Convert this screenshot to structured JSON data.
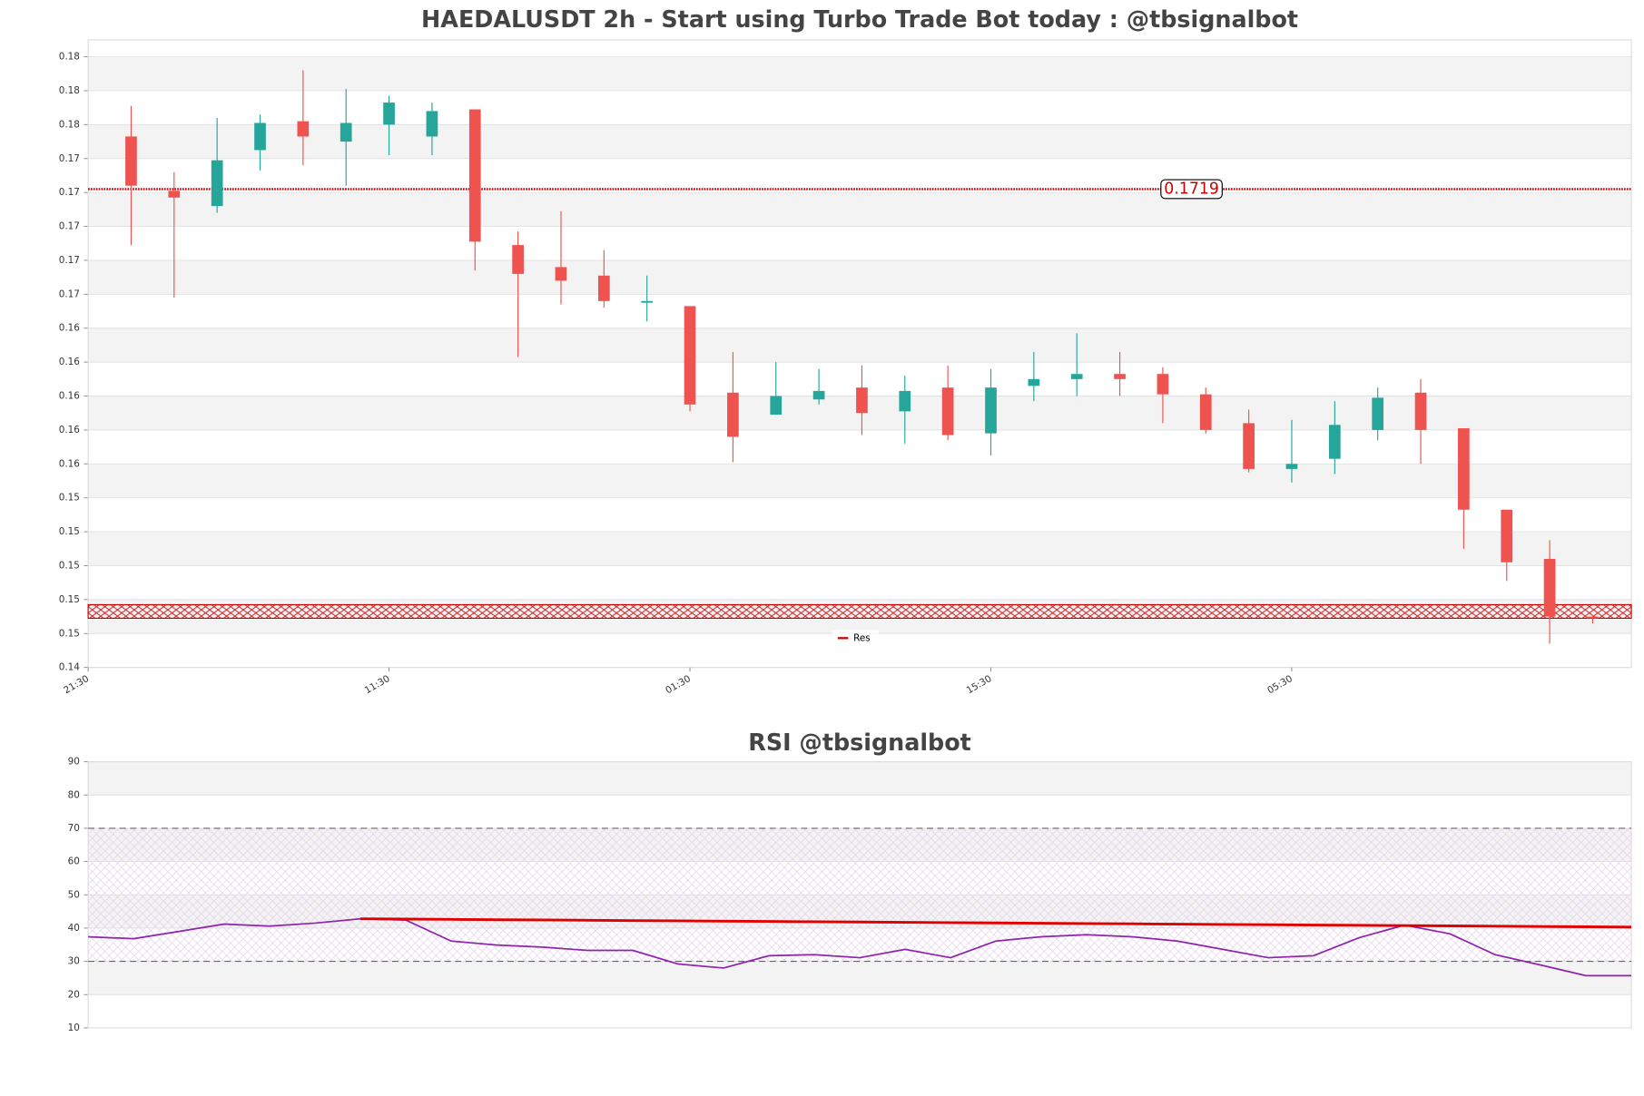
{
  "chart_data": [
    {
      "type": "candlestick",
      "title": "HAEDALUSDT 2h - Start using Turbo Trade Bot today : @tbsignalbot",
      "categories": [
        null,
        null,
        null,
        null,
        null,
        null,
        null,
        null,
        null,
        null,
        null,
        null,
        null,
        null,
        null,
        null,
        null,
        null,
        null,
        null,
        null,
        null,
        null,
        null,
        null,
        null,
        null,
        null,
        null,
        null,
        null,
        null,
        null,
        null,
        null
      ],
      "open": [
        0.175,
        0.1718,
        0.1709,
        0.1742,
        0.1759,
        0.1747,
        0.1757,
        0.175,
        0.1766,
        0.1686,
        0.1673,
        0.1668,
        0.1652,
        0.165,
        0.1599,
        0.1586,
        0.1595,
        0.1602,
        0.1588,
        0.1602,
        0.1575,
        0.1603,
        0.1607,
        0.161,
        0.161,
        0.1598,
        0.1581,
        0.1554,
        0.156,
        0.1577,
        0.1599,
        0.1578,
        0.153,
        0.1501,
        0.1467
      ],
      "high": [
        0.1768,
        0.1729,
        0.1761,
        0.1763,
        0.1789,
        0.1778,
        0.1774,
        0.177,
        0.1766,
        0.1694,
        0.1706,
        0.1683,
        0.1668,
        0.165,
        0.1623,
        0.1617,
        0.1613,
        0.1615,
        0.1609,
        0.1615,
        0.1613,
        0.1623,
        0.1634,
        0.1623,
        0.1614,
        0.1602,
        0.1589,
        0.1583,
        0.1594,
        0.1602,
        0.1607,
        0.1578,
        0.153,
        0.1512,
        0.1468
      ],
      "low": [
        0.1686,
        0.1655,
        0.1705,
        0.173,
        0.1733,
        0.1721,
        0.1739,
        0.1739,
        0.1671,
        0.162,
        0.1651,
        0.1649,
        0.1641,
        0.1588,
        0.1558,
        0.1586,
        0.1592,
        0.1574,
        0.1569,
        0.1571,
        0.1562,
        0.1594,
        0.1597,
        0.1597,
        0.1581,
        0.1575,
        0.1552,
        0.1546,
        0.1551,
        0.1571,
        0.1557,
        0.1507,
        0.1488,
        0.1451,
        0.1463
      ],
      "close": [
        0.1721,
        0.1714,
        0.1736,
        0.1758,
        0.175,
        0.1758,
        0.177,
        0.1765,
        0.1688,
        0.1669,
        0.1665,
        0.1653,
        0.1653,
        0.1592,
        0.1573,
        0.1597,
        0.16,
        0.1587,
        0.16,
        0.1574,
        0.1602,
        0.1607,
        0.161,
        0.1607,
        0.1598,
        0.1577,
        0.1554,
        0.1557,
        0.158,
        0.1596,
        0.1577,
        0.153,
        0.1499,
        0.1467,
        0.1466
      ],
      "up_color": "#26a69a",
      "down_color": "#ef5350",
      "xlim": [
        -1,
        34.9
      ],
      "xticks": [
        {
          "value": -1,
          "label": "21:30"
        },
        {
          "value": 6,
          "label": "11:30"
        },
        {
          "value": 13,
          "label": "01:30"
        },
        {
          "value": 20,
          "label": "15:30"
        },
        {
          "value": 27,
          "label": "05:30"
        }
      ],
      "ylim": [
        0.1437,
        0.1807
      ],
      "yticks": [
        {
          "value": 0.1437,
          "label": "0.14"
        },
        {
          "value": 0.1457,
          "label": "0.15"
        },
        {
          "value": 0.1477,
          "label": "0.15"
        },
        {
          "value": 0.1497,
          "label": "0.15"
        },
        {
          "value": 0.1517,
          "label": "0.15"
        },
        {
          "value": 0.1537,
          "label": "0.15"
        },
        {
          "value": 0.1557,
          "label": "0.16"
        },
        {
          "value": 0.1577,
          "label": "0.16"
        },
        {
          "value": 0.1597,
          "label": "0.16"
        },
        {
          "value": 0.1617,
          "label": "0.16"
        },
        {
          "value": 0.1637,
          "label": "0.16"
        },
        {
          "value": 0.1657,
          "label": "0.17"
        },
        {
          "value": 0.1677,
          "label": "0.17"
        },
        {
          "value": 0.1697,
          "label": "0.17"
        },
        {
          "value": 0.1717,
          "label": "0.17"
        },
        {
          "value": 0.1737,
          "label": "0.17"
        },
        {
          "value": 0.1757,
          "label": "0.18"
        },
        {
          "value": 0.1777,
          "label": "0.18"
        },
        {
          "value": 0.1797,
          "label": "0.18"
        }
      ],
      "resistance": {
        "name": "Res",
        "value": 0.1719,
        "color": "#cc0000"
      },
      "support_zone": {
        "range": [
          0.1466,
          0.1474
        ],
        "color": "#cc0000"
      },
      "legend": "lower center",
      "grid": true
    },
    {
      "type": "line",
      "title": "RSI @tbsignalbot",
      "categories": [
        null,
        null,
        null,
        null,
        null,
        null,
        null,
        null,
        null,
        null,
        null,
        null,
        null,
        null,
        null,
        null,
        null,
        null,
        null,
        null,
        null,
        null,
        null,
        null,
        null,
        null,
        null,
        null,
        null,
        null,
        null,
        null,
        null,
        null,
        null
      ],
      "series": [
        {
          "color": "#8e24aa",
          "values": [
            37.4,
            36.8,
            39.0,
            41.2,
            40.6,
            41.5,
            42.8,
            42.4,
            36.1,
            34.9,
            34.3,
            33.3,
            33.3,
            29.2,
            28.0,
            31.7,
            32.0,
            31.1,
            33.6,
            31.1,
            36.1,
            37.4,
            38.0,
            37.4,
            36.1,
            33.6,
            31.1,
            31.7,
            37.1,
            40.9,
            38.3,
            32.0,
            28.9,
            25.7,
            25.7
          ]
        },
        {
          "color": "#e00000",
          "values": [
            null,
            null,
            null,
            null,
            null,
            null,
            42.8,
            42.71,
            42.62,
            42.53,
            42.44,
            42.35,
            42.26,
            42.18,
            42.09,
            42.0,
            41.91,
            41.82,
            41.73,
            41.64,
            41.55,
            41.46,
            41.37,
            41.28,
            41.19,
            41.1,
            41.01,
            40.92,
            40.84,
            40.75,
            40.66,
            40.57,
            40.48,
            40.39,
            40.3
          ]
        }
      ],
      "ylim": [
        10,
        90
      ],
      "yticks": [
        10,
        20,
        30,
        40,
        50,
        60,
        70,
        80,
        90
      ],
      "reference_lines": [
        30,
        70
      ],
      "grid": true
    }
  ]
}
